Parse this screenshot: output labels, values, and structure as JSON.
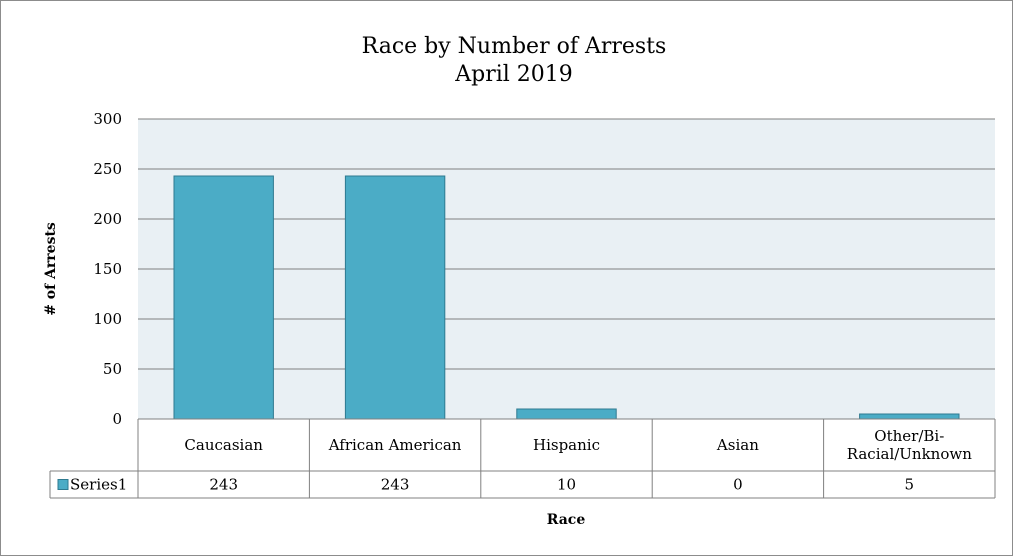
{
  "chart_data": {
    "type": "bar",
    "title": "Race by Number of Arrests",
    "subtitle": "April 2019",
    "xlabel": "Race",
    "ylabel": "# of Arrests",
    "categories": [
      "Caucasian",
      "African American",
      "Hispanic",
      "Asian",
      "Other/Bi-Racial/Unknown"
    ],
    "category_label_lines": [
      [
        "Caucasian"
      ],
      [
        "African American"
      ],
      [
        "Hispanic"
      ],
      [
        "Asian"
      ],
      [
        "Other/Bi-",
        "Racial/Unknown"
      ]
    ],
    "series": [
      {
        "name": "Series1",
        "values": [
          243,
          243,
          10,
          0,
          5
        ]
      }
    ],
    "ylim": [
      0,
      300
    ],
    "yticks": [
      0,
      50,
      100,
      150,
      200,
      250,
      300
    ],
    "grid": true,
    "legend": "data-table",
    "data_table": true
  },
  "colors": {
    "bar_fill": "#4BACC6",
    "bar_stroke": "#2E7A90",
    "plot_background": "#E9F0F4",
    "gridline": "#7F7F7F",
    "table_border": "#808080"
  }
}
